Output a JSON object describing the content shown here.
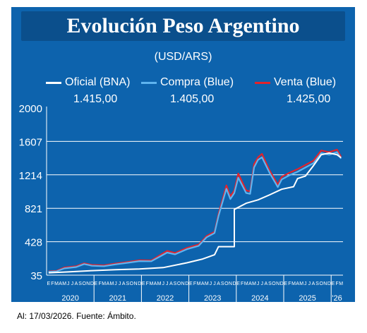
{
  "title": "Evolución Peso Argentino",
  "units": "(USD/ARS)",
  "footer": "Al: 17/03/2026. Fuente: Ámbito.",
  "colors": {
    "background": "#0d63ad",
    "oficial": "#ffffff",
    "compra": "#5fb4ef",
    "venta": "#e3232b",
    "grid": "#ffffff"
  },
  "legend": [
    {
      "label": "Oficial (BNA)",
      "value": "1.415,00",
      "color": "#ffffff"
    },
    {
      "label": "Compra (Blue)",
      "value": "1.405,00",
      "color": "#5fb4ef"
    },
    {
      "label": "Venta (Blue)",
      "value": "1.425,00",
      "color": "#e3232b"
    }
  ],
  "chart_data": {
    "type": "line",
    "title": "Evolución Peso Argentino",
    "ylabel": "(USD/ARS)",
    "ylim": [
      35,
      2000
    ],
    "yticks": [
      "2000",
      "1607",
      "1214",
      "821",
      "428",
      "35"
    ],
    "ytick_values": [
      2000,
      1607,
      1214,
      821,
      428,
      35
    ],
    "grid": true,
    "legend_position": "top",
    "x_range": [
      "2020-01",
      "2026-03"
    ],
    "month_letters": "EFMAMJJASOND",
    "years": [
      "2020",
      "2021",
      "2022",
      "2023",
      "2024",
      "2025",
      "'26"
    ],
    "series": [
      {
        "name": "Oficial (BNA)",
        "color": "#ffffff",
        "points": [
          [
            "2020-01",
            63
          ],
          [
            "2020-06",
            73
          ],
          [
            "2020-12",
            88
          ],
          [
            "2021-06",
            100
          ],
          [
            "2021-12",
            107
          ],
          [
            "2022-06",
            124
          ],
          [
            "2022-12",
            180
          ],
          [
            "2023-04",
            225
          ],
          [
            "2023-07",
            275
          ],
          [
            "2023-08",
            370
          ],
          [
            "2023-12",
            370
          ],
          [
            "2023-12",
            808
          ],
          [
            "2024-03",
            880
          ],
          [
            "2024-06",
            920
          ],
          [
            "2024-09",
            980
          ],
          [
            "2024-12",
            1045
          ],
          [
            "2025-03",
            1075
          ],
          [
            "2025-04",
            1170
          ],
          [
            "2025-06",
            1200
          ],
          [
            "2025-08",
            1320
          ],
          [
            "2025-10",
            1450
          ],
          [
            "2025-12",
            1470
          ],
          [
            "2026-02",
            1450
          ],
          [
            "2026-03",
            1415
          ]
        ]
      },
      {
        "name": "Compra (Blue)",
        "color": "#5fb4ef",
        "points": [
          [
            "2020-01",
            75
          ],
          [
            "2020-03",
            80
          ],
          [
            "2020-05",
            115
          ],
          [
            "2020-08",
            130
          ],
          [
            "2020-10",
            165
          ],
          [
            "2020-12",
            145
          ],
          [
            "2021-03",
            140
          ],
          [
            "2021-06",
            162
          ],
          [
            "2021-09",
            180
          ],
          [
            "2021-12",
            200
          ],
          [
            "2022-03",
            198
          ],
          [
            "2022-07",
            300
          ],
          [
            "2022-09",
            280
          ],
          [
            "2022-12",
            340
          ],
          [
            "2023-03",
            380
          ],
          [
            "2023-05",
            480
          ],
          [
            "2023-07",
            530
          ],
          [
            "2023-08",
            730
          ],
          [
            "2023-10",
            1050
          ],
          [
            "2023-11",
            930
          ],
          [
            "2023-12",
            1000
          ],
          [
            "2024-01",
            1180
          ],
          [
            "2024-03",
            1000
          ],
          [
            "2024-04",
            990
          ],
          [
            "2024-05",
            1300
          ],
          [
            "2024-06",
            1390
          ],
          [
            "2024-07",
            1420
          ],
          [
            "2024-09",
            1230
          ],
          [
            "2024-11",
            1070
          ],
          [
            "2024-12",
            1160
          ],
          [
            "2025-02",
            1210
          ],
          [
            "2025-03",
            1230
          ],
          [
            "2025-04",
            1250
          ],
          [
            "2025-06",
            1300
          ],
          [
            "2025-08",
            1350
          ],
          [
            "2025-10",
            1470
          ],
          [
            "2025-12",
            1450
          ],
          [
            "2026-02",
            1480
          ],
          [
            "2026-03",
            1405
          ]
        ]
      },
      {
        "name": "Venta (Blue)",
        "color": "#e3232b",
        "points": [
          [
            "2020-01",
            80
          ],
          [
            "2020-03",
            85
          ],
          [
            "2020-05",
            125
          ],
          [
            "2020-08",
            140
          ],
          [
            "2020-10",
            175
          ],
          [
            "2020-12",
            155
          ],
          [
            "2021-03",
            150
          ],
          [
            "2021-06",
            172
          ],
          [
            "2021-09",
            190
          ],
          [
            "2021-12",
            210
          ],
          [
            "2022-03",
            208
          ],
          [
            "2022-07",
            320
          ],
          [
            "2022-09",
            295
          ],
          [
            "2022-12",
            355
          ],
          [
            "2023-03",
            395
          ],
          [
            "2023-05",
            495
          ],
          [
            "2023-07",
            545
          ],
          [
            "2023-08",
            755
          ],
          [
            "2023-10",
            1090
          ],
          [
            "2023-11",
            960
          ],
          [
            "2023-12",
            1030
          ],
          [
            "2024-01",
            1230
          ],
          [
            "2024-03",
            1030
          ],
          [
            "2024-04",
            1020
          ],
          [
            "2024-05",
            1340
          ],
          [
            "2024-06",
            1420
          ],
          [
            "2024-07",
            1460
          ],
          [
            "2024-09",
            1260
          ],
          [
            "2024-11",
            1100
          ],
          [
            "2024-12",
            1190
          ],
          [
            "2025-02",
            1240
          ],
          [
            "2025-03",
            1260
          ],
          [
            "2025-04",
            1280
          ],
          [
            "2025-06",
            1330
          ],
          [
            "2025-08",
            1380
          ],
          [
            "2025-10",
            1500
          ],
          [
            "2025-12",
            1480
          ],
          [
            "2026-02",
            1510
          ],
          [
            "2026-03",
            1425
          ]
        ]
      }
    ]
  }
}
